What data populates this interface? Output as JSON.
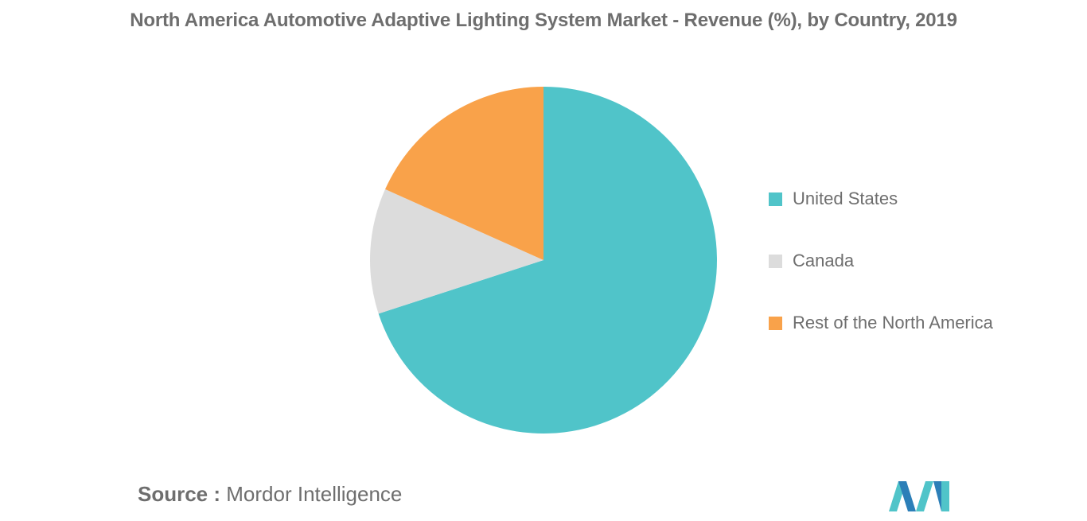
{
  "chart_data": {
    "type": "pie",
    "title": "North America Automotive Adaptive Lighting System Market - Revenue (%), by Country, 2019",
    "categories": [
      "United States",
      "Canada",
      "Rest of the North America"
    ],
    "values": [
      70.0,
      11.7,
      18.3
    ],
    "colors": [
      "#50C4C9",
      "#DCDCDC",
      "#F9A24A"
    ],
    "legend_position": "right"
  },
  "source": {
    "label": "Source :",
    "text": "Mordor Intelligence"
  },
  "logo": {
    "icon": "mordor-intelligence-logo",
    "colors": [
      "#50C4C9",
      "#2C7FB8"
    ]
  }
}
